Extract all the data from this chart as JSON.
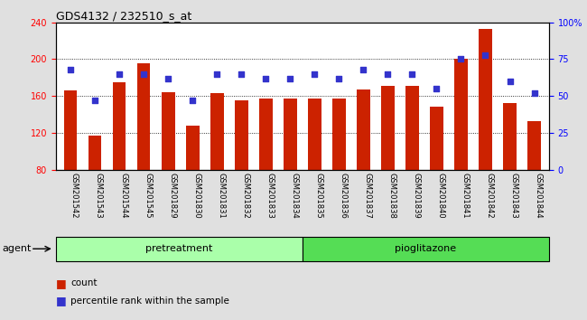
{
  "title": "GDS4132 / 232510_s_at",
  "categories": [
    "GSM201542",
    "GSM201543",
    "GSM201544",
    "GSM201545",
    "GSM201829",
    "GSM201830",
    "GSM201831",
    "GSM201832",
    "GSM201833",
    "GSM201834",
    "GSM201835",
    "GSM201836",
    "GSM201837",
    "GSM201838",
    "GSM201839",
    "GSM201840",
    "GSM201841",
    "GSM201842",
    "GSM201843",
    "GSM201844"
  ],
  "bar_values": [
    166,
    117,
    175,
    196,
    164,
    128,
    163,
    155,
    157,
    157,
    157,
    157,
    167,
    171,
    171,
    148,
    200,
    233,
    152,
    133
  ],
  "percentile_values": [
    68,
    47,
    65,
    65,
    62,
    47,
    65,
    65,
    62,
    62,
    65,
    62,
    68,
    65,
    65,
    55,
    75,
    78,
    60,
    52
  ],
  "bar_color": "#cc2200",
  "percentile_color": "#3333cc",
  "pretreatment_count": 10,
  "pioglitazone_count": 10,
  "pretreatment_color": "#aaffaa",
  "pioglitazone_color": "#55dd55",
  "agent_label": "agent",
  "pretreatment_label": "pretreatment",
  "pioglitazone_label": "pioglitazone",
  "ylim_left": [
    80,
    240
  ],
  "ylim_right": [
    0,
    100
  ],
  "yticks_left": [
    80,
    120,
    160,
    200,
    240
  ],
  "yticks_right": [
    0,
    25,
    50,
    75,
    100
  ],
  "ytick_labels_right": [
    "0",
    "25",
    "50",
    "75",
    "100%"
  ],
  "legend_count_label": "count",
  "legend_percentile_label": "percentile rank within the sample",
  "bg_color": "#e0e0e0",
  "plot_bg_color": "#ffffff",
  "title_fontsize": 9,
  "tick_fontsize": 7,
  "label_fontsize": 8
}
